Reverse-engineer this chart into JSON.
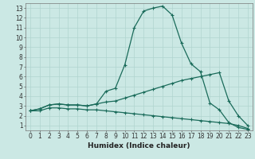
{
  "title": "",
  "xlabel": "Humidex (Indice chaleur)",
  "background_color": "#cbe8e4",
  "grid_color": "#b0d4cf",
  "line_color": "#1a6b5a",
  "xlim": [
    -0.5,
    23.5
  ],
  "ylim": [
    0.5,
    13.5
  ],
  "xticks": [
    0,
    1,
    2,
    3,
    4,
    5,
    6,
    7,
    8,
    9,
    10,
    11,
    12,
    13,
    14,
    15,
    16,
    17,
    18,
    19,
    20,
    21,
    22,
    23
  ],
  "yticks": [
    1,
    2,
    3,
    4,
    5,
    6,
    7,
    8,
    9,
    10,
    11,
    12,
    13
  ],
  "curve1_x": [
    0,
    1,
    2,
    3,
    4,
    5,
    6,
    7,
    8,
    9,
    10,
    11,
    12,
    13,
    14,
    15,
    16,
    17,
    18,
    19,
    20,
    21,
    22,
    23
  ],
  "curve1_y": [
    2.5,
    2.7,
    3.1,
    3.2,
    3.1,
    3.1,
    3.0,
    3.2,
    4.5,
    4.8,
    7.2,
    11.0,
    12.7,
    13.0,
    13.2,
    12.3,
    9.4,
    7.3,
    6.5,
    3.3,
    2.6,
    1.3,
    0.8,
    0.6
  ],
  "curve2_x": [
    0,
    1,
    2,
    3,
    4,
    5,
    6,
    7,
    8,
    9,
    10,
    11,
    12,
    13,
    14,
    15,
    16,
    17,
    18,
    19,
    20,
    21,
    22,
    23
  ],
  "curve2_y": [
    2.5,
    2.7,
    3.1,
    3.2,
    3.1,
    3.1,
    3.0,
    3.2,
    3.4,
    3.5,
    3.8,
    4.1,
    4.4,
    4.7,
    5.0,
    5.3,
    5.6,
    5.8,
    6.0,
    6.2,
    6.4,
    3.5,
    2.0,
    1.0
  ],
  "curve3_x": [
    0,
    1,
    2,
    3,
    4,
    5,
    6,
    7,
    8,
    9,
    10,
    11,
    12,
    13,
    14,
    15,
    16,
    17,
    18,
    19,
    20,
    21,
    22,
    23
  ],
  "curve3_y": [
    2.5,
    2.5,
    2.8,
    2.8,
    2.7,
    2.7,
    2.6,
    2.6,
    2.5,
    2.4,
    2.3,
    2.2,
    2.1,
    2.0,
    1.9,
    1.8,
    1.7,
    1.6,
    1.5,
    1.4,
    1.3,
    1.2,
    1.0,
    0.7
  ],
  "marker_size": 3,
  "line_width": 0.9,
  "tick_fontsize": 5.5,
  "label_fontsize": 6.5
}
